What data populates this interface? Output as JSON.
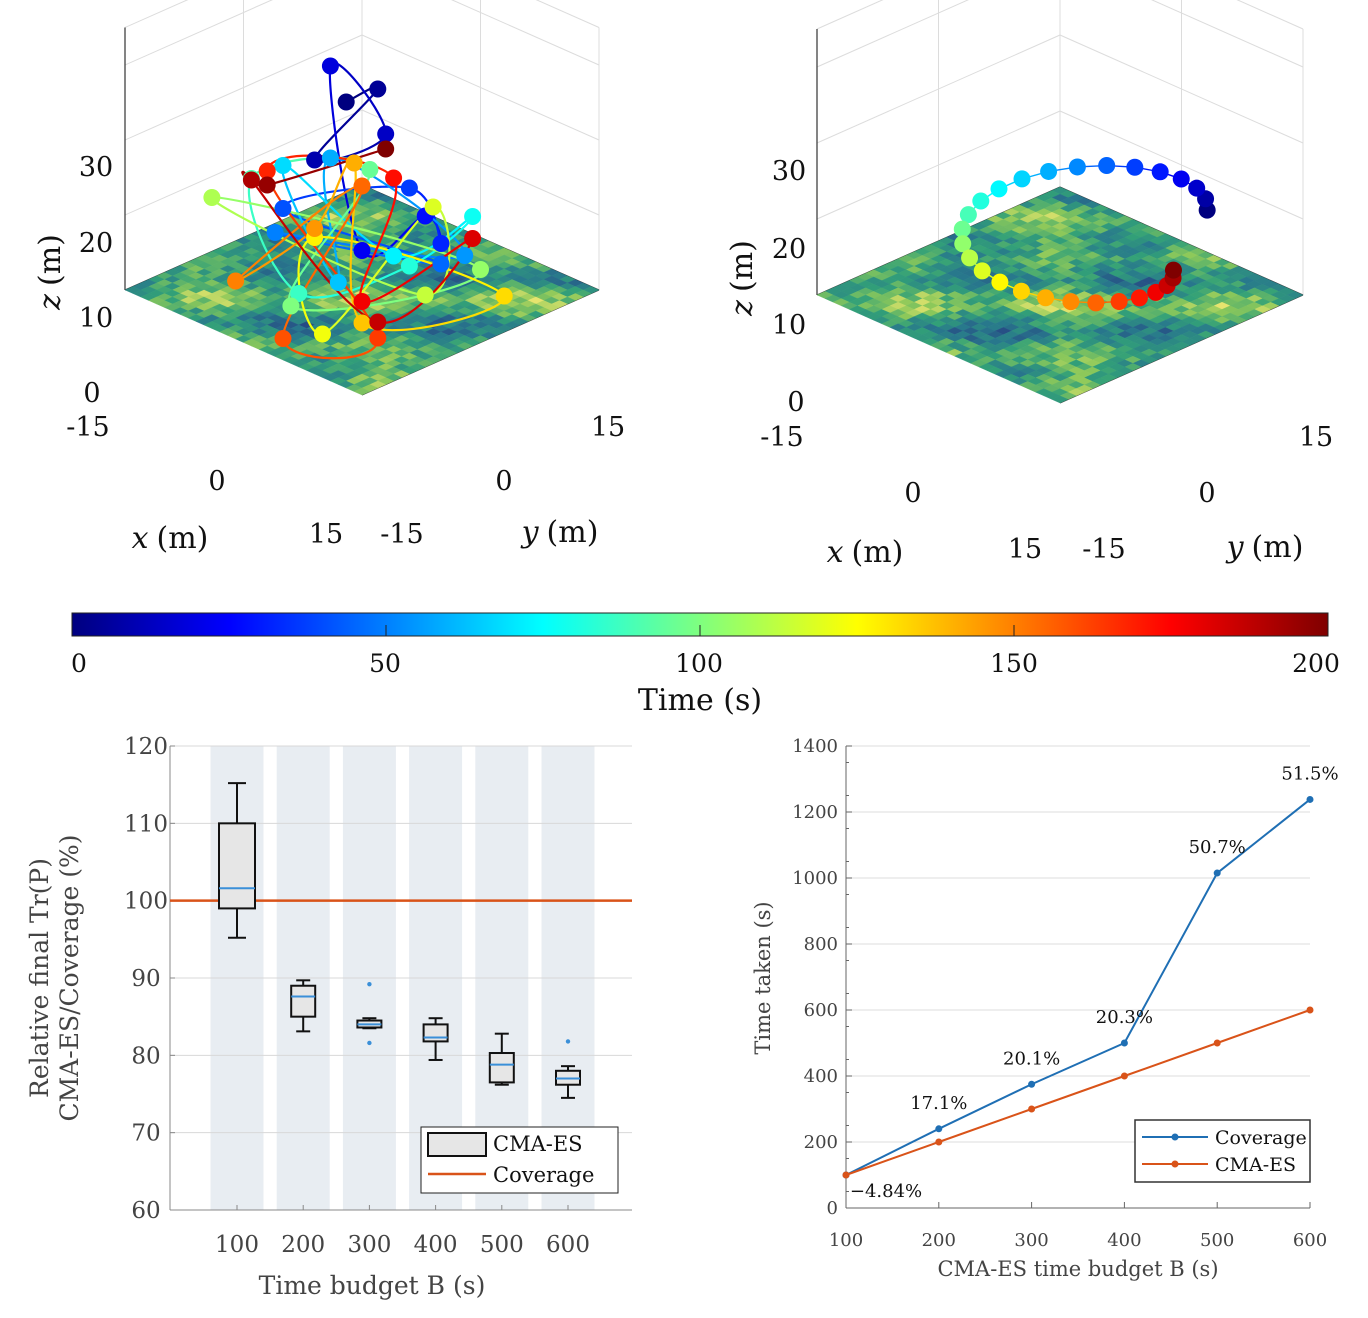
{
  "colors": {
    "coverage_blue": "#1f6fb4",
    "cmaes_orange": "#d95319",
    "band": "#e8edf2",
    "box_fill": "#e6e6e6",
    "median": "#3a8fd8"
  },
  "colorbar": {
    "ticks": [
      "0",
      "50",
      "100",
      "150",
      "200"
    ],
    "label": "Time (s)",
    "range": [
      0,
      200
    ],
    "colormap": "jet"
  },
  "plot3d_left": {
    "z_ticks": [
      "0",
      "10",
      "20",
      "30"
    ],
    "x_ticks": [
      "-15",
      "0",
      "15"
    ],
    "y_ticks": [
      "-15",
      "0",
      "15"
    ],
    "x_label": "x",
    "y_label": "y",
    "z_label": "z",
    "unit": "(m)"
  },
  "plot3d_right": {
    "z_ticks": [
      "0",
      "10",
      "20",
      "30"
    ],
    "x_ticks": [
      "-15",
      "0",
      "15"
    ],
    "y_ticks": [
      "-15",
      "0",
      "15"
    ],
    "x_label": "x",
    "y_label": "y",
    "z_label": "z",
    "unit": "(m)"
  },
  "chart_data": [
    {
      "type": "box",
      "categories": [
        "100",
        "200",
        "300",
        "400",
        "500",
        "600"
      ],
      "ylim": [
        60,
        120
      ],
      "yticks": [
        "60",
        "70",
        "80",
        "90",
        "100",
        "110",
        "120"
      ],
      "ylabel_line1": "Relative final Tr(P)",
      "ylabel_line2": "CMA-ES/Coverage (%)",
      "xlabel": "Time budget B (s)",
      "reference_line": 100,
      "series": [
        {
          "name": "CMA-ES",
          "boxes": [
            {
              "whisker_low": 95.2,
              "q1": 99,
              "median": 101.6,
              "q3": 110,
              "whisker_high": 115.2,
              "outliers": []
            },
            {
              "whisker_low": 83.1,
              "q1": 85,
              "median": 87.6,
              "q3": 89,
              "whisker_high": 89.7,
              "outliers": []
            },
            {
              "whisker_low": 83.5,
              "q1": 83.6,
              "median": 84,
              "q3": 84.5,
              "whisker_high": 84.8,
              "outliers": [
                89.2,
                81.6
              ]
            },
            {
              "whisker_low": 79.4,
              "q1": 81.8,
              "median": 82.3,
              "q3": 84,
              "whisker_high": 84.8,
              "outliers": []
            },
            {
              "whisker_low": 76.2,
              "q1": 76.5,
              "median": 78.8,
              "q3": 80.3,
              "whisker_high": 82.8,
              "outliers": []
            },
            {
              "whisker_low": 74.5,
              "q1": 76.2,
              "median": 77,
              "q3": 78,
              "whisker_high": 78.6,
              "outliers": [
                81.8
              ]
            }
          ]
        },
        {
          "name": "Coverage"
        }
      ],
      "legend": [
        "CMA-ES",
        "Coverage"
      ]
    },
    {
      "type": "line",
      "x": [
        100,
        200,
        300,
        400,
        500,
        600
      ],
      "xticks": [
        "100",
        "200",
        "300",
        "400",
        "500",
        "600"
      ],
      "ylim": [
        0,
        1400
      ],
      "yticks": [
        "0",
        "200",
        "400",
        "600",
        "800",
        "1000",
        "1200",
        "1400"
      ],
      "xlabel": "CMA-ES time budget B (s)",
      "ylabel": "Time taken (s)",
      "series": [
        {
          "name": "Coverage",
          "values": [
            100,
            240,
            375,
            500,
            1015,
            1238
          ]
        },
        {
          "name": "CMA-ES",
          "values": [
            100,
            200,
            300,
            400,
            500,
            600
          ]
        }
      ],
      "annotations": [
        "−4.84%",
        "17.1%",
        "20.1%",
        "20.3%",
        "50.7%",
        "51.5%"
      ],
      "legend": [
        "Coverage",
        "CMA-ES"
      ]
    }
  ]
}
